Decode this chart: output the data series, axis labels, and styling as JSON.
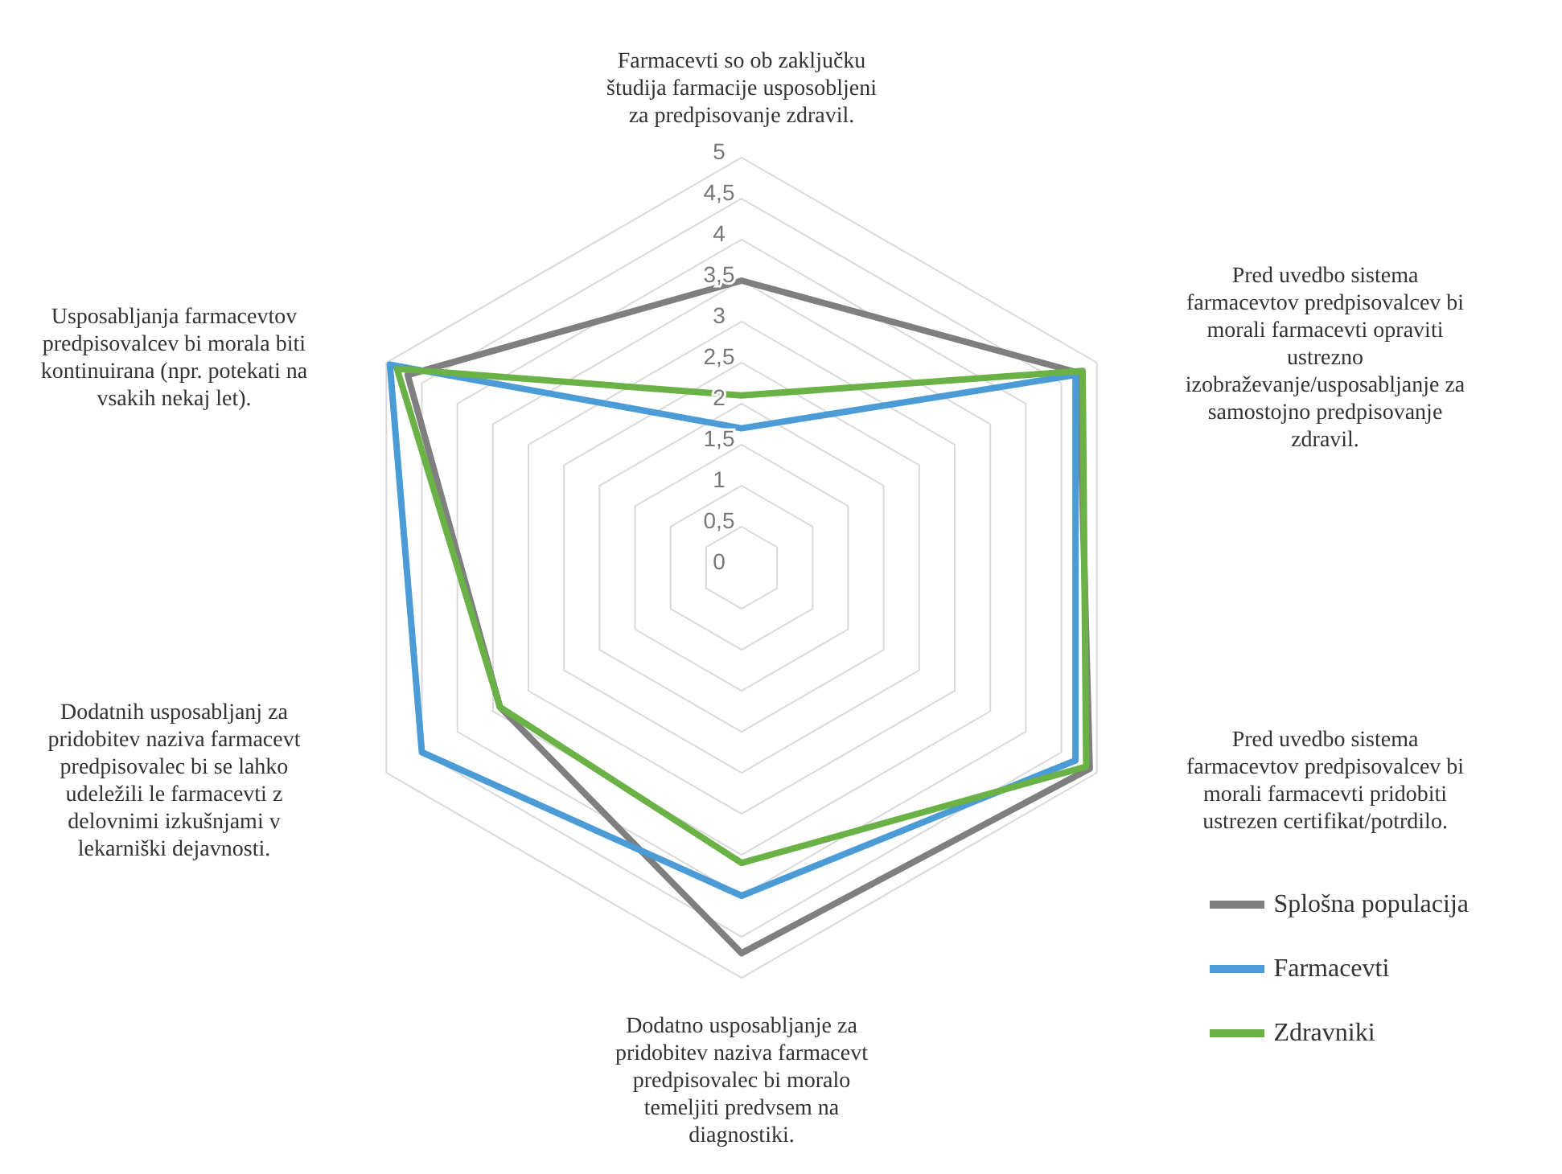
{
  "chart_data": {
    "type": "radar",
    "categories": [
      "Farmacevti so ob zaključku študija farmacije usposobljeni za predpisovanje zdravil.",
      "Pred uvedbo sistema farmacevtov predpisovalcev bi morali farmacevti opraviti ustrezno izobraževanje/usposabljanje za samostojno predpisovanje zdravil.",
      "Pred uvedbo sistema farmacevtov predpisovalcev bi morali farmacevti pridobiti ustrezen certifikat/potrdilo.",
      "Dodatno usposabljanje za pridobitev naziva farmacevt predpisovalec bi moralo temeljiti predvsem na diagnostiki.",
      "Dodatnih usposabljanj za pridobitev naziva farmacevt predpisovalec bi se lahko udeležili le farmacevti z delovnimi izkušnjami v lekarniški dejavnosti.",
      "Usposabljanja farmacevtov predpisovalcev bi morala biti kontinuirana (npr. potekati na vsakih nekaj let)."
    ],
    "series": [
      {
        "name": "Splošna populacija",
        "color": "#7f7f7f",
        "values": [
          3.5,
          4.75,
          4.9,
          4.7,
          3.4,
          4.7
        ]
      },
      {
        "name": "Farmacevti",
        "color": "#4a9bd6",
        "values": [
          1.7,
          4.7,
          4.7,
          4.0,
          4.5,
          4.95
        ]
      },
      {
        "name": "Zdravniki",
        "color": "#6ab245",
        "values": [
          2.1,
          4.8,
          4.85,
          3.6,
          3.4,
          4.85
        ]
      }
    ],
    "ylim": [
      0,
      5
    ],
    "yticks": [
      0,
      {
        "value": 0.5,
        "label": "0,5"
      },
      1,
      {
        "value": 1.5,
        "label": "1,5"
      },
      2,
      {
        "value": 2.5,
        "label": "2,5"
      },
      3,
      {
        "value": 3.5,
        "label": "3,5"
      },
      4,
      {
        "value": 4.5,
        "label": "4,5"
      },
      5
    ],
    "grid": true,
    "legend": "bottom right",
    "marker": "none",
    "line_style": "solid"
  }
}
